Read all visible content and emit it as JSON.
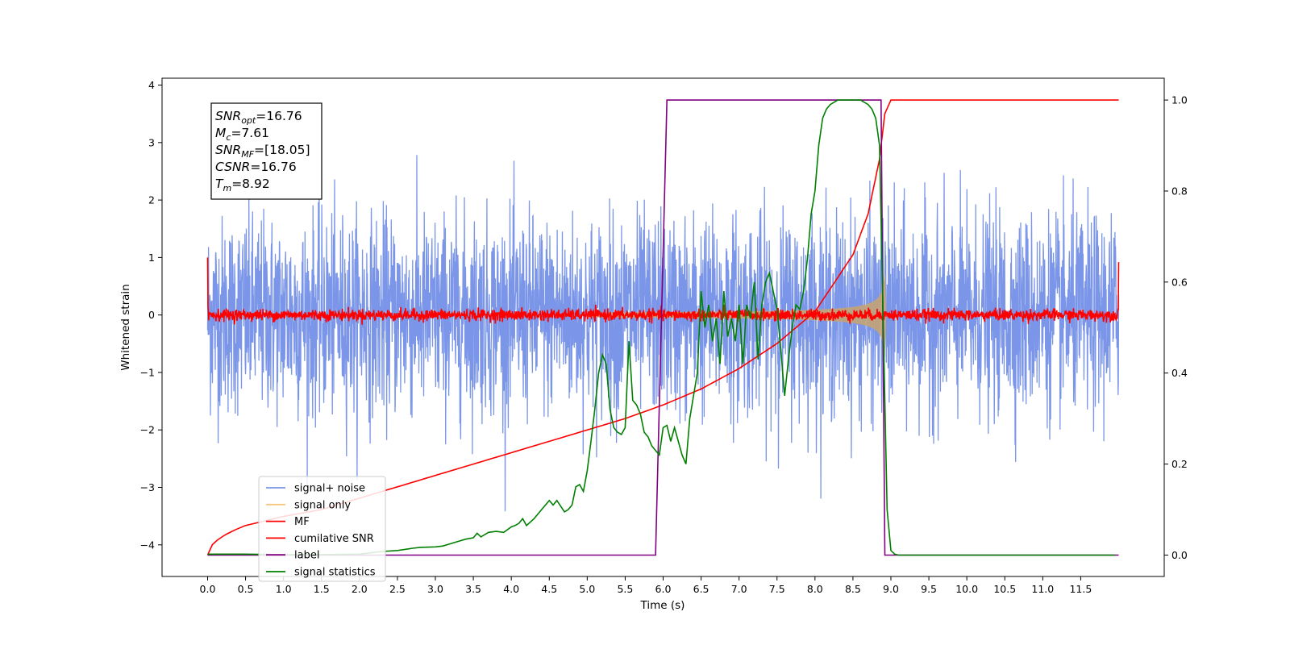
{
  "chart_data": {
    "type": "line",
    "xlabel": "Time (s)",
    "ylabel": "Whitened strain",
    "xlim": [
      -0.6,
      12.6
    ],
    "ylim": [
      -4.55,
      4.12
    ],
    "ylim_right": [
      -0.047,
      1.048
    ],
    "x_ticks": [
      "0.0",
      "0.5",
      "1.0",
      "1.5",
      "2.0",
      "2.5",
      "3.0",
      "3.5",
      "4.0",
      "4.5",
      "5.0",
      "5.5",
      "6.0",
      "6.5",
      "7.0",
      "7.5",
      "8.0",
      "8.5",
      "9.0",
      "9.5",
      "10.0",
      "10.5",
      "11.0",
      "11.5"
    ],
    "y_ticks_left": [
      "4",
      "3",
      "2",
      "1",
      "0",
      "−1",
      "−2",
      "−3",
      "−4"
    ],
    "y_ticks_right": [
      "1.0",
      "0.8",
      "0.6",
      "0.4",
      "0.2",
      "0.0"
    ],
    "grid": false,
    "legend_position": "lower-left",
    "annotation": {
      "lines": [
        {
          "sym": "SNR",
          "sub": "opt",
          "value": "=16.76"
        },
        {
          "sym": "M",
          "sub": "c",
          "value": "=7.61"
        },
        {
          "sym": "SNR",
          "sub": "MF",
          "value": "=[18.05]"
        },
        {
          "sym": "CSNR",
          "sub": "",
          "value": "=16.76"
        },
        {
          "sym": "T",
          "sub": "m",
          "value": "=8.92"
        }
      ]
    },
    "series": [
      {
        "name": "signal+ noise",
        "color": "#7b96e8",
        "axis": "left",
        "x_range": [
          0,
          12
        ],
        "amplitude": 1.6,
        "note_shape": "white noise"
      },
      {
        "name": "signal only",
        "color": "#f5c77e",
        "axis": "left",
        "chirp_start": 5.0,
        "chirp_end": 8.92,
        "max_amplitude": 1.05
      },
      {
        "name": "MF",
        "color": "#ff0000",
        "axis": "left",
        "x_range": [
          0,
          12
        ],
        "start_value": 1.0,
        "end_value": 0.92,
        "amplitude": 0.05
      },
      {
        "name": "cumilative SNR",
        "color": "#ff0000",
        "axis": "right",
        "x": [
          0,
          0.5,
          1.0,
          1.5,
          2.0,
          2.5,
          3.0,
          3.5,
          4.0,
          4.5,
          5.0,
          5.5,
          6.0,
          6.5,
          7.0,
          7.5,
          8.0,
          8.5,
          8.7,
          8.85,
          8.92,
          9.0,
          12.0
        ],
        "y": [
          0.0,
          0.065,
          0.085,
          0.1,
          0.125,
          0.15,
          0.175,
          0.2,
          0.225,
          0.25,
          0.275,
          0.3,
          0.33,
          0.365,
          0.41,
          0.465,
          0.535,
          0.66,
          0.75,
          0.87,
          0.97,
          1.0,
          1.0
        ]
      },
      {
        "name": "label",
        "color": "#800080",
        "axis": "right",
        "x": [
          0,
          5.9,
          6.05,
          8.87,
          8.92,
          12.0
        ],
        "y": [
          0,
          0,
          1,
          1,
          0,
          0
        ]
      },
      {
        "name": "signal statistics",
        "color": "#008000",
        "axis": "right",
        "x": [
          0,
          0.5,
          1.0,
          1.5,
          2.0,
          2.3,
          2.5,
          2.7,
          2.8,
          3.0,
          3.1,
          3.2,
          3.3,
          3.4,
          3.5,
          3.55,
          3.6,
          3.7,
          3.8,
          3.9,
          4.0,
          4.05,
          4.1,
          4.15,
          4.2,
          4.3,
          4.4,
          4.5,
          4.55,
          4.6,
          4.7,
          4.75,
          4.8,
          4.85,
          4.9,
          4.95,
          5.0,
          5.05,
          5.1,
          5.15,
          5.2,
          5.25,
          5.3,
          5.35,
          5.4,
          5.45,
          5.5,
          5.55,
          5.6,
          5.65,
          5.7,
          5.75,
          5.8,
          5.85,
          5.9,
          5.95,
          6.0,
          6.05,
          6.1,
          6.15,
          6.2,
          6.25,
          6.3,
          6.35,
          6.4,
          6.45,
          6.5,
          6.55,
          6.6,
          6.65,
          6.7,
          6.75,
          6.8,
          6.85,
          6.9,
          6.95,
          7.0,
          7.05,
          7.1,
          7.15,
          7.2,
          7.25,
          7.3,
          7.35,
          7.4,
          7.45,
          7.5,
          7.55,
          7.6,
          7.65,
          7.7,
          7.75,
          7.8,
          7.85,
          7.9,
          7.95,
          8.0,
          8.05,
          8.1,
          8.15,
          8.2,
          8.3,
          8.4,
          8.5,
          8.6,
          8.7,
          8.75,
          8.8,
          8.85,
          8.9,
          8.95,
          9.0,
          9.05,
          9.1,
          9.5,
          10.0,
          11.0,
          11.95
        ],
        "y": [
          0.002,
          0.002,
          0.001,
          0.001,
          0.002,
          0.008,
          0.01,
          0.015,
          0.017,
          0.018,
          0.02,
          0.025,
          0.03,
          0.035,
          0.038,
          0.048,
          0.04,
          0.05,
          0.052,
          0.05,
          0.062,
          0.065,
          0.07,
          0.08,
          0.065,
          0.08,
          0.1,
          0.12,
          0.11,
          0.12,
          0.095,
          0.1,
          0.11,
          0.15,
          0.155,
          0.14,
          0.185,
          0.25,
          0.32,
          0.4,
          0.44,
          0.42,
          0.32,
          0.28,
          0.27,
          0.265,
          0.28,
          0.47,
          0.34,
          0.33,
          0.31,
          0.27,
          0.26,
          0.24,
          0.23,
          0.22,
          0.28,
          0.285,
          0.25,
          0.28,
          0.25,
          0.22,
          0.2,
          0.3,
          0.35,
          0.4,
          0.58,
          0.5,
          0.55,
          0.47,
          0.52,
          0.42,
          0.58,
          0.48,
          0.52,
          0.47,
          0.55,
          0.42,
          0.55,
          0.52,
          0.6,
          0.43,
          0.55,
          0.6,
          0.62,
          0.58,
          0.54,
          0.45,
          0.35,
          0.43,
          0.5,
          0.55,
          0.54,
          0.58,
          0.65,
          0.75,
          0.8,
          0.9,
          0.96,
          0.98,
          0.99,
          1.0,
          1.0,
          1.0,
          1.0,
          0.99,
          0.98,
          0.96,
          0.9,
          0.5,
          0.1,
          0.01,
          0.002,
          0.0,
          0.0,
          0.0,
          0.0,
          0.0
        ]
      }
    ]
  }
}
